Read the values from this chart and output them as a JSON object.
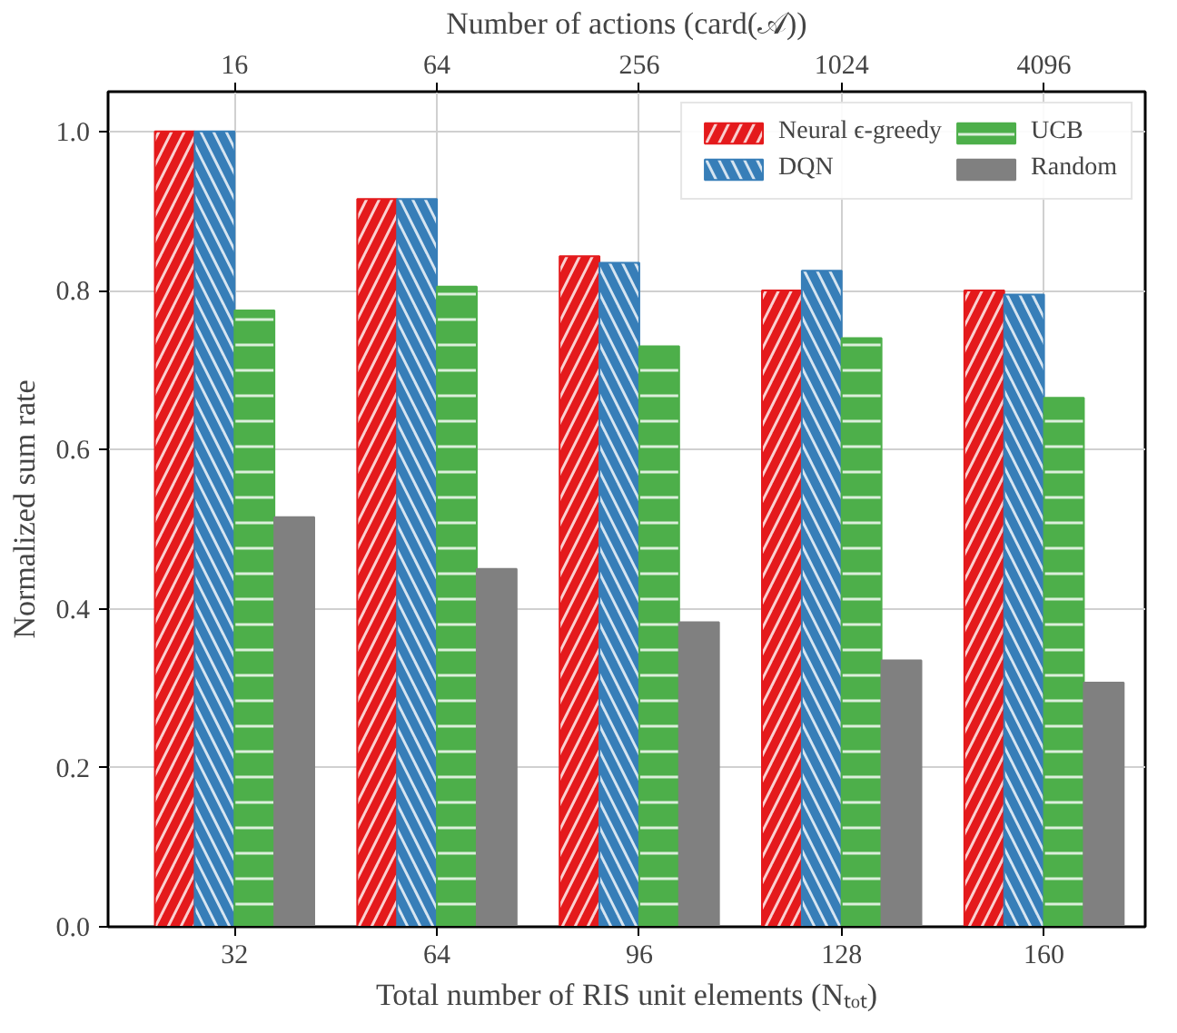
{
  "chart_data": {
    "type": "bar",
    "xlabel": "Total number of RIS unit elements (Nₜₒₜ)",
    "ylabel": "Normalized sum rate",
    "x2label": "Number of actions (card(𝒜))",
    "x": [
      32,
      64,
      96,
      128,
      160
    ],
    "xlim": [
      12,
      176
    ],
    "xticks": [
      32,
      64,
      96,
      128,
      160
    ],
    "x2lim": [
      6.73,
      8192
    ],
    "x2ticks": [
      16,
      64,
      256,
      1024,
      4096
    ],
    "log": "x2",
    "ylim": [
      0,
      1.05
    ],
    "yticks": [
      {
        "value": 0,
        "label": "0.0"
      },
      0.2,
      0.4,
      0.6,
      0.8,
      {
        "value": 1,
        "label": "1.0"
      }
    ],
    "series": [
      {
        "name": "Neural ϵ-greedy",
        "color": "#e41a1c",
        "values": [
          1.0,
          0.915,
          0.843,
          0.8,
          0.8
        ]
      },
      {
        "name": "DQN",
        "color": "#377eb8",
        "values": [
          1.0,
          0.915,
          0.835,
          0.825,
          0.795
        ]
      },
      {
        "name": "UCB",
        "color": "#4daf4a",
        "values": [
          0.775,
          0.805,
          0.73,
          0.74,
          0.665
        ]
      },
      {
        "name": "Random",
        "color": "#808080",
        "values": [
          0.515,
          0.45,
          0.383,
          0.335,
          0.307
        ]
      }
    ],
    "grid": true,
    "legend": "top right"
  }
}
